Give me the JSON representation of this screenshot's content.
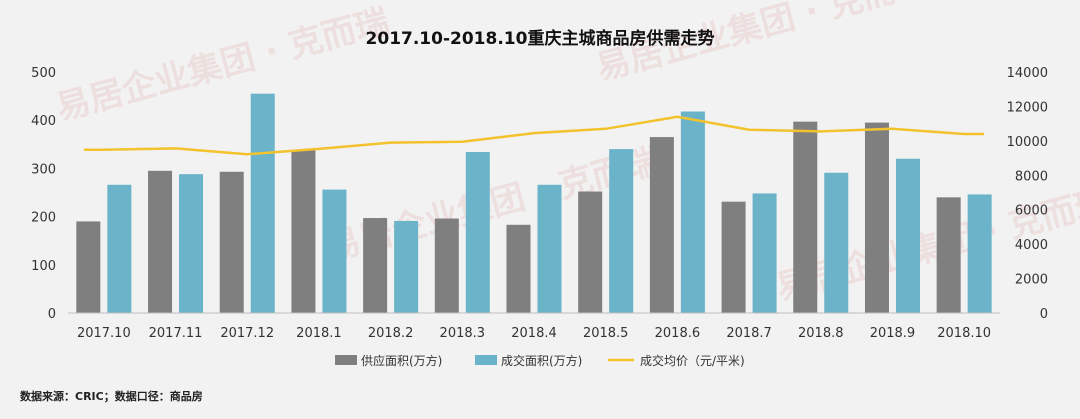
{
  "chart_data": {
    "type": "bar",
    "title": "2017.10-2018.10重庆主城商品房供需走势",
    "categories": [
      "2017.10",
      "2017.11",
      "2017.12",
      "2018.1",
      "2018.2",
      "2018.3",
      "2018.4",
      "2018.5",
      "2018.6",
      "2018.7",
      "2018.8",
      "2018.9",
      "2018.10"
    ],
    "series": [
      {
        "name": "供应面积(万方)",
        "kind": "bar",
        "axis": "left",
        "color": "#7f7f7f",
        "values": [
          190,
          295,
          293,
          338,
          197,
          196,
          183,
          252,
          365,
          231,
          397,
          395,
          240
        ]
      },
      {
        "name": "成交面积(万方)",
        "kind": "bar",
        "axis": "left",
        "color": "#6ab3c8",
        "values": [
          266,
          288,
          455,
          256,
          191,
          334,
          266,
          340,
          418,
          248,
          291,
          320,
          246
        ]
      },
      {
        "name": "成交均价（元/平米)",
        "kind": "line",
        "axis": "right",
        "color": "#f2c32c",
        "values": [
          9480,
          9560,
          9220,
          9530,
          9900,
          9950,
          10450,
          10700,
          11400,
          10650,
          10550,
          10700,
          10400
        ]
      }
    ],
    "ylim": [
      0,
      500
    ],
    "yticks": [
      "0",
      "100",
      "200",
      "300",
      "400",
      "500"
    ],
    "y2lim": [
      0,
      14000
    ],
    "y2ticks": [
      "0",
      "2000",
      "4000",
      "6000",
      "8000",
      "10000",
      "12000",
      "14000"
    ],
    "grid": false,
    "legend_position": "bottom"
  },
  "footer": {
    "source": "数据来源：CRIC；数据口径：商品房"
  },
  "watermark": "易居企业集团·克而瑞"
}
